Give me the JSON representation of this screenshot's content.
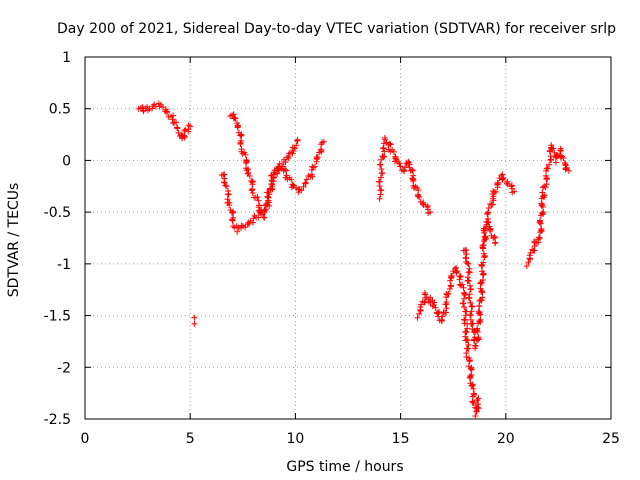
{
  "chart_data": {
    "type": "scatter",
    "title": "Day 200 of 2021, Sidereal Day-to-day VTEC variation (SDTVAR) for receiver srlp",
    "xlabel": "GPS time / hours",
    "ylabel": "SDTVAR / TECUs",
    "xlim": [
      0,
      25
    ],
    "ylim": [
      -2.5,
      1
    ],
    "x_ticks": [
      "0",
      "5",
      "10",
      "15",
      "20",
      "25"
    ],
    "y_ticks": [
      "1",
      "0.5",
      "0",
      "-0.5",
      "-1",
      "-1.5",
      "-2",
      "-2.5"
    ],
    "grid": true,
    "marker": "+",
    "marker_color": "#ff0000",
    "segments": [
      [
        [
          2.55,
          0.52
        ],
        [
          2.8,
          0.47
        ],
        [
          3.0,
          0.5
        ],
        [
          3.3,
          0.54
        ],
        [
          3.6,
          0.53
        ],
        [
          3.9,
          0.47
        ],
        [
          4.2,
          0.4
        ],
        [
          4.4,
          0.33
        ],
        [
          4.6,
          0.2
        ],
        [
          4.7,
          0.22
        ],
        [
          4.85,
          0.3
        ],
        [
          5.0,
          0.33
        ]
      ],
      [
        [
          5.2,
          -1.58
        ]
      ],
      [
        [
          6.5,
          -0.12
        ],
        [
          6.7,
          -0.25
        ],
        [
          6.9,
          -0.45
        ],
        [
          7.1,
          -0.62
        ],
        [
          7.3,
          -0.68
        ],
        [
          7.5,
          -0.65
        ],
        [
          7.8,
          -0.6
        ],
        [
          8.0,
          -0.58
        ],
        [
          8.3,
          -0.52
        ],
        [
          8.5,
          -0.5
        ],
        [
          8.7,
          -0.42
        ],
        [
          8.9,
          -0.2
        ],
        [
          9.1,
          -0.1
        ],
        [
          9.3,
          -0.05
        ],
        [
          9.5,
          0.0
        ],
        [
          9.7,
          0.05
        ],
        [
          9.9,
          0.12
        ],
        [
          10.1,
          0.2
        ]
      ],
      [
        [
          6.9,
          0.45
        ],
        [
          7.1,
          0.4
        ],
        [
          7.3,
          0.3
        ],
        [
          7.5,
          0.1
        ],
        [
          7.8,
          -0.12
        ],
        [
          8.0,
          -0.3
        ],
        [
          8.3,
          -0.45
        ],
        [
          8.5,
          -0.55
        ]
      ],
      [
        [
          8.6,
          -0.45
        ],
        [
          8.9,
          -0.15
        ],
        [
          9.3,
          -0.05
        ],
        [
          9.6,
          -0.15
        ],
        [
          9.9,
          -0.25
        ],
        [
          10.2,
          -0.3
        ],
        [
          10.5,
          -0.22
        ],
        [
          10.8,
          -0.12
        ],
        [
          11.0,
          0.0
        ],
        [
          11.2,
          0.08
        ],
        [
          11.35,
          0.18
        ]
      ],
      [
        [
          14.0,
          -0.35
        ],
        [
          14.1,
          0.0
        ],
        [
          14.3,
          0.2
        ],
        [
          14.5,
          0.12
        ],
        [
          14.8,
          0.0
        ],
        [
          15.0,
          -0.05
        ],
        [
          15.2,
          -0.1
        ],
        [
          15.4,
          0.0
        ],
        [
          15.6,
          -0.2
        ],
        [
          15.8,
          -0.3
        ],
        [
          16.0,
          -0.4
        ],
        [
          16.2,
          -0.45
        ],
        [
          16.4,
          -0.5
        ]
      ],
      [
        [
          15.8,
          -1.5
        ],
        [
          16.0,
          -1.4
        ],
        [
          16.2,
          -1.3
        ],
        [
          16.4,
          -1.35
        ],
        [
          16.6,
          -1.4
        ],
        [
          16.8,
          -1.5
        ],
        [
          17.0,
          -1.55
        ],
        [
          17.2,
          -1.35
        ],
        [
          17.4,
          -1.15
        ],
        [
          17.6,
          -1.05
        ],
        [
          17.8,
          -1.1
        ],
        [
          18.0,
          -1.3
        ],
        [
          18.1,
          -1.6
        ],
        [
          18.2,
          -1.9
        ],
        [
          18.3,
          -2.0
        ],
        [
          18.4,
          -2.2
        ],
        [
          18.5,
          -2.35
        ],
        [
          18.6,
          -2.45
        ],
        [
          18.7,
          -2.3
        ]
      ],
      [
        [
          18.0,
          -0.85
        ],
        [
          18.2,
          -1.0
        ],
        [
          18.4,
          -1.6
        ],
        [
          18.6,
          -1.8
        ],
        [
          18.8,
          -1.4
        ],
        [
          19.0,
          -0.7
        ],
        [
          19.2,
          -0.5
        ],
        [
          19.4,
          -0.35
        ],
        [
          19.6,
          -0.25
        ],
        [
          19.8,
          -0.15
        ],
        [
          20.0,
          -0.2
        ],
        [
          20.2,
          -0.25
        ],
        [
          20.4,
          -0.3
        ]
      ],
      [
        [
          18.9,
          -0.8
        ],
        [
          19.1,
          -0.6
        ],
        [
          19.3,
          -0.7
        ],
        [
          19.5,
          -0.8
        ]
      ],
      [
        [
          21.0,
          -1.0
        ],
        [
          21.2,
          -0.9
        ],
        [
          21.4,
          -0.8
        ],
        [
          21.6,
          -0.75
        ],
        [
          21.8,
          -0.3
        ],
        [
          22.0,
          -0.1
        ],
        [
          22.2,
          0.15
        ],
        [
          22.4,
          0.0
        ],
        [
          22.6,
          0.1
        ],
        [
          22.8,
          -0.05
        ],
        [
          23.0,
          -0.1
        ]
      ]
    ]
  }
}
